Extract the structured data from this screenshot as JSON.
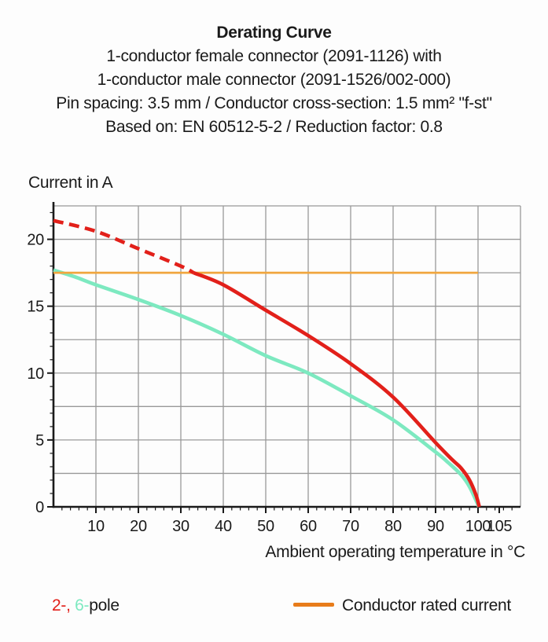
{
  "page": {
    "background": "#fdfdfd"
  },
  "colors": {
    "red": "#e2201a",
    "mint": "#7de9c0",
    "orange_line": "#f1a63e",
    "orange_legend": "#e87c1a",
    "grid": "#999999",
    "axis": "#1a1a1a",
    "text": "#1a1a1a"
  },
  "header": {
    "title": "Derating Curve",
    "lines": [
      "1-conductor female connector (2091-1126) with",
      "1-conductor male connector (2091-1526/002-000)",
      "Pin spacing: 3.5 mm / Conductor cross-section: 1.5 mm² \"f-st\"",
      "Based on: EN 60512-5-2 / Reduction factor: 0.8"
    ]
  },
  "legend": {
    "left": {
      "item_2": "2-,",
      "item_6": " 6-",
      "suffix": "pole"
    },
    "rated_label": "Conductor rated current"
  },
  "chart_data": {
    "type": "line",
    "title": "Derating Curve",
    "xlabel": "Ambient operating temperature in °C",
    "ylabel": "Current in A",
    "xlim": [
      0,
      110
    ],
    "ylim": [
      0,
      22.5
    ],
    "grid": true,
    "grid_x_step": 10,
    "grid_y_step": 2.5,
    "x_major_ticks": [
      10,
      20,
      30,
      40,
      50,
      60,
      70,
      80,
      90,
      100,
      105
    ],
    "y_major_ticks": [
      0,
      5,
      10,
      15,
      20
    ],
    "x_minor_step": 2,
    "y_minor_step": 1,
    "legend_position": "bottom",
    "series": [
      {
        "name": "6-pole",
        "color": "#7de9c0",
        "width": 4.6,
        "segments": [
          {
            "dash": false,
            "points": [
              [
                0,
                17.7
              ],
              [
                5,
                17.2
              ],
              [
                10,
                16.6
              ],
              [
                20,
                15.5
              ],
              [
                30,
                14.3
              ],
              [
                40,
                12.9
              ],
              [
                50,
                11.3
              ],
              [
                60,
                10.0
              ],
              [
                70,
                8.3
              ],
              [
                80,
                6.5
              ],
              [
                90,
                4.1
              ],
              [
                93,
                3.3
              ],
              [
                96,
                2.4
              ],
              [
                98,
                1.5
              ],
              [
                100.2,
                0
              ]
            ]
          }
        ]
      },
      {
        "name": "Conductor rated current",
        "color": "#f1a63e",
        "width": 2.8,
        "segments": [
          {
            "dash": false,
            "points": [
              [
                0,
                17.5
              ],
              [
                100,
                17.5
              ]
            ]
          }
        ]
      },
      {
        "name": "2-pole",
        "color": "#e2201a",
        "width": 4.6,
        "segments": [
          {
            "dash": true,
            "points": [
              [
                0,
                21.4
              ],
              [
                10,
                20.6
              ],
              [
                20,
                19.3
              ],
              [
                30,
                18.0
              ],
              [
                33,
                17.5
              ]
            ]
          },
          {
            "dash": false,
            "points": [
              [
                33,
                17.5
              ],
              [
                40,
                16.6
              ],
              [
                50,
                14.7
              ],
              [
                60,
                12.8
              ],
              [
                70,
                10.7
              ],
              [
                80,
                8.2
              ],
              [
                90,
                4.8
              ],
              [
                94,
                3.5
              ],
              [
                96,
                2.9
              ],
              [
                98,
                2.0
              ],
              [
                99.5,
                0.9
              ],
              [
                100.3,
                0
              ]
            ]
          }
        ]
      }
    ]
  }
}
